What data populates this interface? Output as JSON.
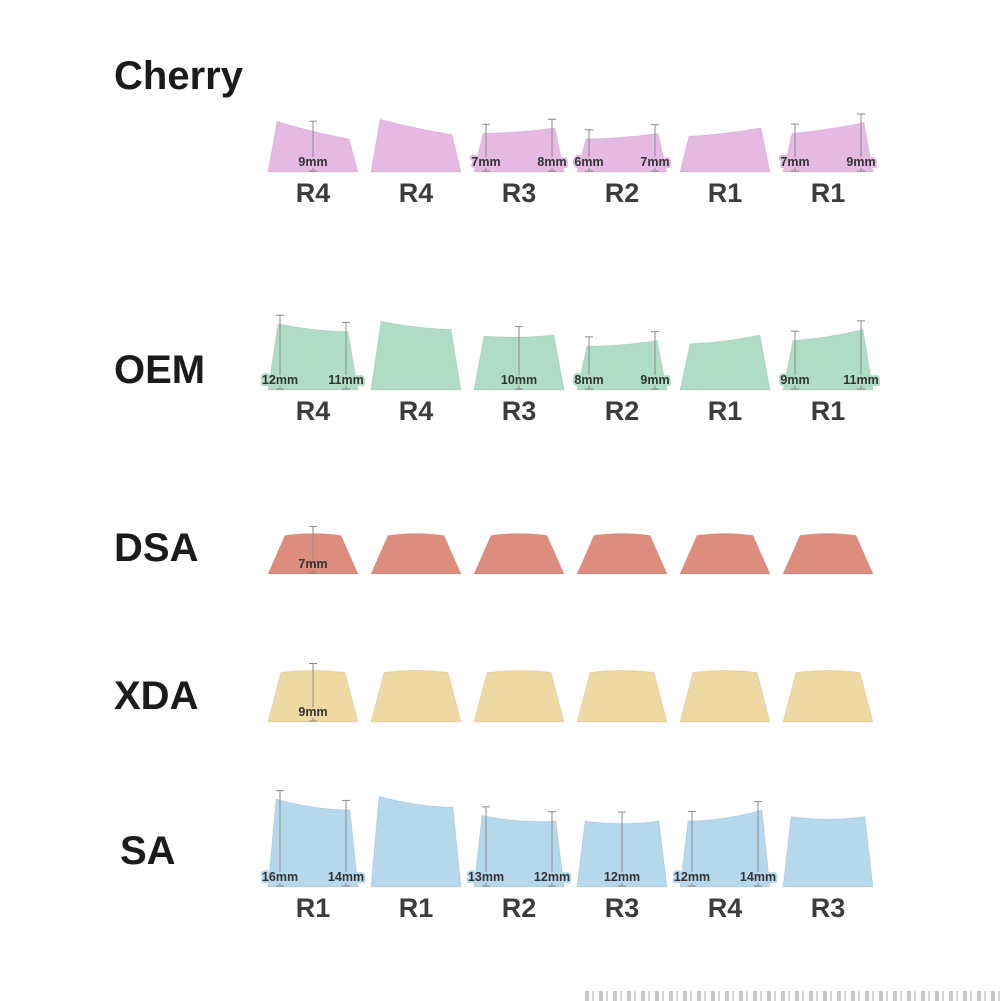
{
  "diagram": {
    "background": "#ffffff",
    "measure_line_color": "#8b8b8b",
    "measure_text_color": "#333333",
    "label_text_color": "#3c3c3c"
  },
  "profiles": [
    {
      "name": "Cherry",
      "fill": "#e6b9e3",
      "shape": "cherry",
      "keycaps": [
        {
          "row": "R4",
          "left_mm": 9.2,
          "right_mm": 6.0,
          "measurements": [
            {
              "text": "9mm",
              "pos": "center"
            }
          ]
        },
        {
          "row": "R4",
          "left_mm": 9.6,
          "right_mm": 6.8,
          "measurements": []
        },
        {
          "row": "R3",
          "left_mm": 7.0,
          "right_mm": 8.0,
          "measurements": [
            {
              "text": "7mm",
              "pos": "left"
            },
            {
              "text": "8mm",
              "pos": "right"
            }
          ]
        },
        {
          "row": "R2",
          "left_mm": 6.0,
          "right_mm": 7.0,
          "measurements": [
            {
              "text": "6mm",
              "pos": "left"
            },
            {
              "text": "7mm",
              "pos": "right"
            }
          ]
        },
        {
          "row": "R1",
          "left_mm": 6.5,
          "right_mm": 8.0,
          "measurements": []
        },
        {
          "row": "R1",
          "left_mm": 7.0,
          "right_mm": 9.0,
          "measurements": [
            {
              "text": "7mm",
              "pos": "left"
            },
            {
              "text": "9mm",
              "pos": "right"
            }
          ]
        }
      ]
    },
    {
      "name": "OEM",
      "fill": "#aedcc7",
      "shape": "oem",
      "keycaps": [
        {
          "row": "R4",
          "left_mm": 12.0,
          "right_mm": 10.6,
          "measurements": [
            {
              "text": "12mm",
              "pos": "left"
            },
            {
              "text": "11mm",
              "pos": "right"
            }
          ]
        },
        {
          "row": "R4",
          "left_mm": 12.5,
          "right_mm": 11.0,
          "measurements": []
        },
        {
          "row": "R3",
          "left_mm": 9.8,
          "right_mm": 10.0,
          "measurements": [
            {
              "text": "10mm",
              "pos": "center"
            }
          ]
        },
        {
          "row": "R2",
          "left_mm": 8.0,
          "right_mm": 9.0,
          "measurements": [
            {
              "text": "8mm",
              "pos": "left"
            },
            {
              "text": "9mm",
              "pos": "right"
            }
          ]
        },
        {
          "row": "R1",
          "left_mm": 8.4,
          "right_mm": 10.0,
          "measurements": []
        },
        {
          "row": "R1",
          "left_mm": 9.0,
          "right_mm": 11.0,
          "measurements": [
            {
              "text": "9mm",
              "pos": "left"
            },
            {
              "text": "11mm",
              "pos": "right"
            }
          ]
        }
      ]
    },
    {
      "name": "DSA",
      "fill": "#dd8d7e",
      "shape": "dsa",
      "keycaps": [
        {
          "row": null,
          "left_mm": 7.0,
          "right_mm": 7.0,
          "measurements": [
            {
              "text": "7mm",
              "pos": "center"
            }
          ]
        },
        {
          "row": null,
          "left_mm": 7.0,
          "right_mm": 7.0,
          "measurements": []
        },
        {
          "row": null,
          "left_mm": 7.0,
          "right_mm": 7.0,
          "measurements": []
        },
        {
          "row": null,
          "left_mm": 7.0,
          "right_mm": 7.0,
          "measurements": []
        },
        {
          "row": null,
          "left_mm": 7.0,
          "right_mm": 7.0,
          "measurements": []
        },
        {
          "row": null,
          "left_mm": 7.0,
          "right_mm": 7.0,
          "measurements": []
        }
      ]
    },
    {
      "name": "XDA",
      "fill": "#eed9a3",
      "shape": "xda",
      "keycaps": [
        {
          "row": null,
          "left_mm": 9.0,
          "right_mm": 9.0,
          "measurements": [
            {
              "text": "9mm",
              "pos": "center"
            }
          ]
        },
        {
          "row": null,
          "left_mm": 9.0,
          "right_mm": 9.0,
          "measurements": []
        },
        {
          "row": null,
          "left_mm": 9.0,
          "right_mm": 9.0,
          "measurements": []
        },
        {
          "row": null,
          "left_mm": 9.0,
          "right_mm": 9.0,
          "measurements": []
        },
        {
          "row": null,
          "left_mm": 9.0,
          "right_mm": 9.0,
          "measurements": []
        },
        {
          "row": null,
          "left_mm": 9.0,
          "right_mm": 9.0,
          "measurements": []
        }
      ]
    },
    {
      "name": "SA",
      "fill": "#b6d8ec",
      "shape": "sa",
      "keycaps": [
        {
          "row": "R1",
          "left_mm": 16.0,
          "right_mm": 14.0,
          "measurements": [
            {
              "text": "16mm",
              "pos": "left"
            },
            {
              "text": "14mm",
              "pos": "right"
            }
          ]
        },
        {
          "row": "R1",
          "left_mm": 16.5,
          "right_mm": 14.5,
          "measurements": []
        },
        {
          "row": "R2",
          "left_mm": 13.0,
          "right_mm": 12.0,
          "measurements": [
            {
              "text": "13mm",
              "pos": "left"
            },
            {
              "text": "12mm",
              "pos": "right"
            }
          ]
        },
        {
          "row": "R3",
          "left_mm": 12.0,
          "right_mm": 12.0,
          "measurements": [
            {
              "text": "12mm",
              "pos": "center"
            }
          ]
        },
        {
          "row": "R4",
          "left_mm": 12.0,
          "right_mm": 14.0,
          "measurements": [
            {
              "text": "12mm",
              "pos": "left"
            },
            {
              "text": "14mm",
              "pos": "right"
            }
          ]
        },
        {
          "row": "R3",
          "left_mm": 12.8,
          "right_mm": 12.8,
          "measurements": []
        }
      ]
    }
  ]
}
